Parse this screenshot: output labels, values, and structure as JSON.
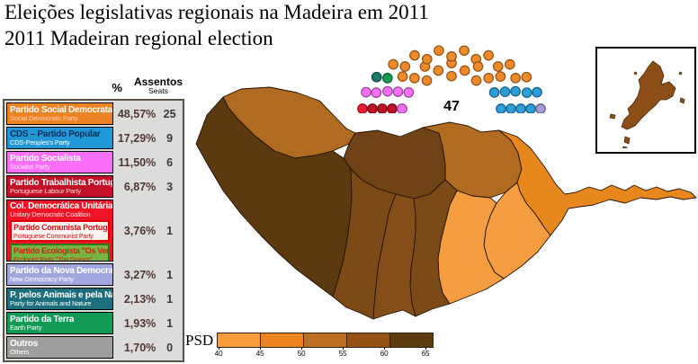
{
  "title": {
    "line1": "Eleições legislativas regionais na Madeira em 2011",
    "line2": "2011 Madeiran regional election"
  },
  "legend": {
    "headers": {
      "percent": "%",
      "seats_pt": "Assentos",
      "seats_en": "Seats"
    },
    "rows": [
      {
        "name_pt": "Partido Social Democrata",
        "name_en": "Social Democratic Party",
        "color": "#ec8424",
        "title_color": "#ffffff",
        "sub_color": "#ffc9b3",
        "percent": "48,57%",
        "seats": "25"
      },
      {
        "name_pt": "CDS – Partido Popular",
        "name_en": "CDS-Peoples's Party",
        "color": "#2297d5",
        "title_color": "#0b2f5e",
        "sub_color": "#ffffff",
        "percent": "17,29%",
        "seats": "9"
      },
      {
        "name_pt": "Partido Socialista",
        "name_en": "Socialist Party",
        "color": "#fb6ffb",
        "title_color": "#ffffff",
        "sub_color": "#ffe3fb",
        "percent": "11,50%",
        "seats": "6"
      },
      {
        "name_pt": "Partido Trabalhista Português",
        "name_en": "Portuguese Labour Party",
        "color": "#c11027",
        "title_color": "#ffffff",
        "sub_color": "#ffd9d9",
        "percent": "6,87%",
        "seats": "3"
      },
      {
        "name_pt": "Col. Democrática Unitária",
        "name_en": "Unitary Democratic Coalition",
        "color": "#ee1425",
        "title_color": "#ffffff",
        "sub_color": "#ffe0e0",
        "percent": "3,76%",
        "seats": "1",
        "children": [
          {
            "name_pt": "Partido Comunista Português",
            "name_en": "Portuguese Communist Party",
            "color": "#fdf4f2",
            "border": "#dd0000",
            "text": "#dd1111"
          },
          {
            "name_pt": "Partido Ecologista \"Os Verdes\"",
            "name_en": "Ecologist Party \"The Greens\"",
            "color": "#79b443",
            "border": "#2b7a1e",
            "text": "#cc2210"
          }
        ]
      },
      {
        "name_pt": "Partido da Nova Democracia",
        "name_en": "New Democracy Party",
        "color": "#a2a6de",
        "title_color": "#ffffff",
        "sub_color": "#ffffff",
        "percent": "3,27%",
        "seats": "1"
      },
      {
        "name_pt": "P. pelos Animais e pela Natureza",
        "name_en": "Party for Animals and Nature",
        "color": "#1c6e7d",
        "title_color": "#ffffff",
        "sub_color": "#ffffff",
        "percent": "2,13%",
        "seats": "1"
      },
      {
        "name_pt": "Partido da Terra",
        "name_en": "Earth Party",
        "color": "#119a55",
        "title_color": "#ffffff",
        "sub_color": "#ffffff",
        "percent": "1,93%",
        "seats": "1"
      },
      {
        "name_pt": "Outros",
        "name_en": "Others",
        "color": "#9e9e9e",
        "title_color": "#ffffff",
        "sub_color": "#ffffff",
        "percent": "1,70%",
        "seats": "0"
      }
    ]
  },
  "parliament": {
    "total_label": "47",
    "total_seats": 47,
    "segments": [
      {
        "party": "Col. Democrática Unitária",
        "seats": 1,
        "color": "#ee1c2e"
      },
      {
        "party": "Partido Trabalhista Português",
        "seats": 3,
        "color": "#c11027"
      },
      {
        "party": "Partido Socialista",
        "seats": 6,
        "color": "#fb6ffb"
      },
      {
        "party": "P. pelos Animais e pela Natureza",
        "seats": 1,
        "color": "#1b7a6b"
      },
      {
        "party": "Partido da Terra",
        "seats": 1,
        "color": "#169a52"
      },
      {
        "party": "Partido Social Democrata",
        "seats": 25,
        "color": "#ef8a2b"
      },
      {
        "party": "CDS – Partido Popular",
        "seats": 9,
        "color": "#2d9fd8"
      },
      {
        "party": "Partido da Nova Democracia",
        "seats": 1,
        "color": "#a39bd6"
      }
    ]
  },
  "map": {
    "regions": [
      {
        "id": "r1",
        "fill": "#b06b20"
      },
      {
        "id": "r2",
        "fill": "#6f4315"
      },
      {
        "id": "r3",
        "fill": "#b06b20"
      },
      {
        "id": "r4",
        "fill": "#e8871e"
      },
      {
        "id": "r5",
        "fill": "#f49e41"
      },
      {
        "id": "r6",
        "fill": "#f49e41"
      },
      {
        "id": "r7",
        "fill": "#7c4a16"
      },
      {
        "id": "r8",
        "fill": "#834e17"
      },
      {
        "id": "r9",
        "fill": "#7c4a16"
      },
      {
        "id": "r10",
        "fill": "#5c390f"
      }
    ],
    "inset_fill": "#8a4e16"
  },
  "scale": {
    "label": "PSD",
    "ticks": [
      "40",
      "45",
      "50",
      "55",
      "60",
      "65"
    ],
    "segment_colors": [
      "#f79d3f",
      "#ec8520",
      "#bd6e22",
      "#965115",
      "#5e3c12"
    ]
  }
}
